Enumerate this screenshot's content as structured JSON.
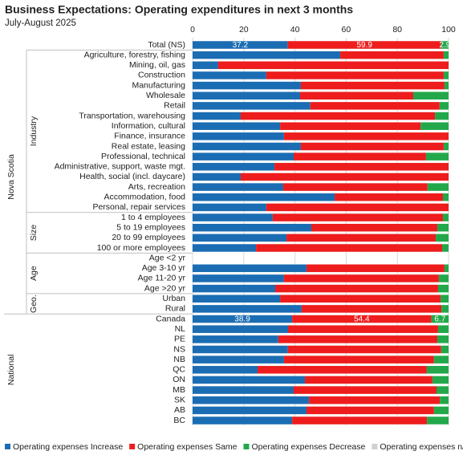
{
  "chart_data": {
    "type": "stacked_barh",
    "title": "Business Expectations: Operating expenditures in next 3 months",
    "subtitle": "July-August 2025",
    "categories": [
      "Total (NS)",
      "Agriculture, forestry, fishing",
      "Mining, oil, gas",
      "Construction",
      "Manufacturing",
      "Wholesale",
      "Retail",
      "Transportation, warehousing",
      "Information, cultural",
      "Finance, insurance",
      "Real estate, leasing",
      "Professional, technical",
      "Administrative, support, waste mgt.",
      "Health, social (incl. daycare)",
      "Arts, recreation",
      "Accommodation, food",
      "Personal, repair services",
      "1 to 4 employees",
      "5 to 19 employees",
      "20 to 99 employees",
      "100 or more employees",
      "Age <2 yr",
      "Age 3-10 yr",
      "Age 11-20 yr",
      "Age >20 yr",
      "Urban",
      "Rural",
      "Canada",
      "NL",
      "PE",
      "NS",
      "NB",
      "QC",
      "ON",
      "MB",
      "SK",
      "AB",
      "BC"
    ],
    "groups": [
      {
        "label": "Nova Scotia",
        "start": 0,
        "end": 26,
        "subgroups": [
          {
            "label": "Industry",
            "start": 1,
            "end": 16
          },
          {
            "label": "Size",
            "start": 17,
            "end": 20
          },
          {
            "label": "Age",
            "start": 21,
            "end": 24
          },
          {
            "label": "Geo.",
            "start": 25,
            "end": 26
          }
        ]
      },
      {
        "label": "National",
        "start": 27,
        "end": 37
      }
    ],
    "series": [
      {
        "name": "Operating expenses Increase",
        "color": "#1b6db3",
        "values": [
          37.2,
          57.7,
          10,
          28.8,
          42.3,
          42,
          46,
          18.8,
          34.2,
          35.7,
          42.3,
          39.5,
          32,
          18.8,
          35.4,
          55.5,
          28.8,
          31.3,
          46.4,
          36.7,
          24.8,
          null,
          44.5,
          35.7,
          32.3,
          34.2,
          42.6,
          38.9,
          37.3,
          33.5,
          37.2,
          35.7,
          25.4,
          43.9,
          39.5,
          45.5,
          44.5,
          38.9
        ],
        "value_labels": [
          "37.2",
          null,
          null,
          null,
          null,
          null,
          null,
          null,
          null,
          null,
          null,
          null,
          null,
          null,
          null,
          null,
          null,
          null,
          null,
          null,
          null,
          null,
          null,
          null,
          null,
          null,
          null,
          "38.9",
          null,
          null,
          null,
          null,
          null,
          null,
          null,
          null,
          null,
          null
        ]
      },
      {
        "name": "Operating expenses Same",
        "color": "#ee1c1c",
        "values": [
          59.9,
          40.4,
          90,
          69.3,
          56.1,
          44.2,
          50.5,
          75.9,
          54.9,
          64.3,
          55.8,
          51.7,
          68,
          81.2,
          56.4,
          42.3,
          71.2,
          66.5,
          49.2,
          58.3,
          72.7,
          null,
          53.9,
          60.5,
          63.6,
          62.7,
          54.6,
          54.4,
          58.6,
          62.1,
          59.9,
          58.6,
          66.1,
          49.8,
          55.8,
          51.1,
          49.8,
          52.7
        ],
        "value_labels": [
          "59.9",
          null,
          null,
          null,
          null,
          null,
          null,
          null,
          null,
          null,
          null,
          null,
          null,
          null,
          null,
          null,
          null,
          null,
          null,
          null,
          null,
          null,
          null,
          null,
          null,
          null,
          null,
          "54.4",
          null,
          null,
          null,
          null,
          null,
          null,
          null,
          null,
          null,
          null
        ]
      },
      {
        "name": "Operating expenses Decrease",
        "color": "#22a84a",
        "values": [
          2.9,
          1.9,
          0,
          1.9,
          1.6,
          13.8,
          3.5,
          5.3,
          10.9,
          0,
          1.9,
          8.8,
          0,
          0,
          8.2,
          2.2,
          0,
          2.2,
          4.4,
          5,
          2.5,
          null,
          1.6,
          3.8,
          4.1,
          3.1,
          2.8,
          6.7,
          4.1,
          4.4,
          2.9,
          5.7,
          8.5,
          6.3,
          4.7,
          3.4,
          5.7,
          8.4
        ],
        "value_labels": [
          "2.9",
          null,
          null,
          null,
          null,
          null,
          null,
          null,
          null,
          null,
          null,
          null,
          null,
          null,
          null,
          null,
          null,
          null,
          null,
          null,
          null,
          null,
          null,
          null,
          null,
          null,
          null,
          "6.7",
          null,
          null,
          null,
          null,
          null,
          null,
          null,
          null,
          null,
          null
        ]
      },
      {
        "name": "Operating expenses n/a",
        "color": "#d0d0d0",
        "values": [
          0,
          0,
          0,
          0,
          0,
          0,
          0,
          0,
          0,
          0,
          0,
          0,
          0,
          0,
          0,
          0,
          0,
          0,
          0,
          0,
          0,
          null,
          0,
          0,
          0,
          0,
          0,
          0,
          0,
          0,
          0,
          0,
          0,
          0,
          0,
          0,
          0,
          0
        ]
      }
    ],
    "xlim": [
      0,
      100
    ],
    "xticks": [
      0,
      20,
      40,
      60,
      80,
      100
    ],
    "grid": true,
    "legend": "bottom"
  }
}
